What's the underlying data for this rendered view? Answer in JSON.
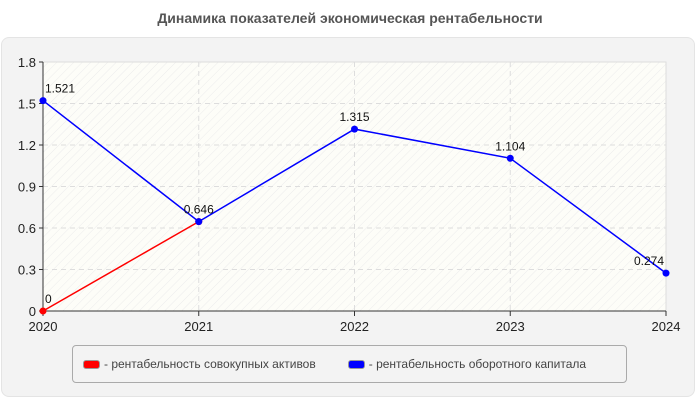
{
  "title": "Динамика показателей экономическая рентабельности",
  "chart_data": {
    "type": "line",
    "title": "Динамика показателей экономическая рентабельности",
    "xlabel": "",
    "ylabel": "",
    "x": [
      "2020",
      "2021",
      "2022",
      "2023",
      "2024"
    ],
    "ylim": [
      0,
      1.8
    ],
    "yticks": [
      "0",
      "0.3",
      "0.6",
      "0.9",
      "1.2",
      "1.5",
      "1.8"
    ],
    "grid": true,
    "legend_position": "bottom",
    "series": [
      {
        "name": "- рентабельность совокупных активов",
        "color": "#ff0000",
        "values": [
          0,
          0.646,
          null,
          null,
          null
        ],
        "labels": [
          "0",
          "",
          "",
          "",
          ""
        ]
      },
      {
        "name": "- рентабельность оборотного капитала",
        "color": "#0000ff",
        "values": [
          1.521,
          0.646,
          1.315,
          1.104,
          0.274
        ],
        "labels": [
          "1.521",
          "0.646",
          "1.315",
          "1.104",
          "0.274"
        ]
      }
    ]
  },
  "legend": {
    "items": [
      {
        "label": "- рентабельность совокупных активов",
        "color": "#ff0000"
      },
      {
        "label": "- рентабельность оборотного капитала",
        "color": "#0000ff"
      }
    ]
  }
}
